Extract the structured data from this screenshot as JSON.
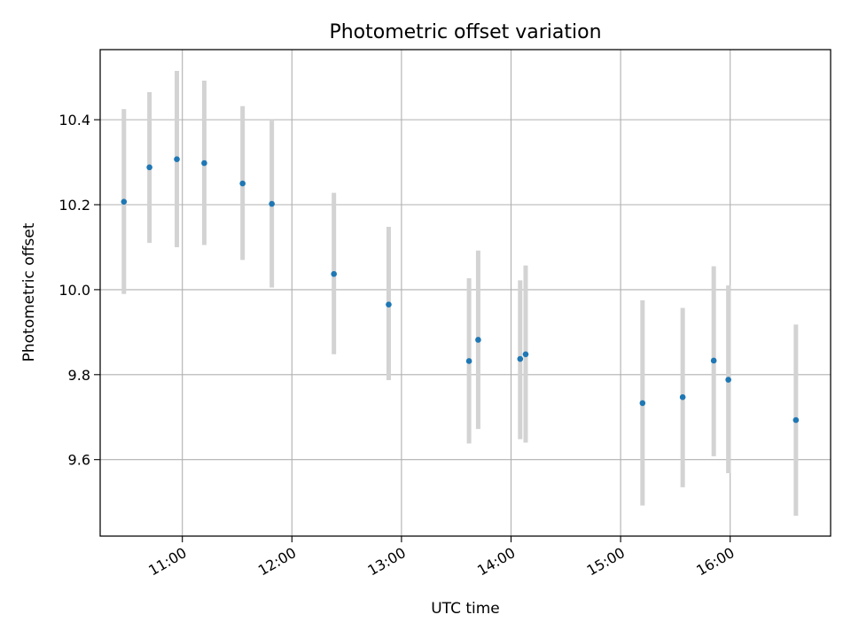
{
  "chart_data": {
    "type": "scatter",
    "title": "Photometric offset variation",
    "xlabel": "UTC time",
    "ylabel": "Photometric offset",
    "xlim": [
      "10:15",
      "16:55"
    ],
    "ylim": [
      9.42,
      10.565
    ],
    "x_ticks": [
      "11:00",
      "12:00",
      "13:00",
      "14:00",
      "15:00",
      "16:00"
    ],
    "y_ticks": [
      9.6,
      9.8,
      10.0,
      10.2,
      10.4
    ],
    "grid": true,
    "colors": {
      "point": "#1f77b4",
      "errorbar": "#d3d3d3",
      "grid": "#b0b0b0"
    },
    "points": [
      {
        "x": "10:28",
        "y": 10.207,
        "ylo": 9.99,
        "yhi": 10.425
      },
      {
        "x": "10:42",
        "y": 10.288,
        "ylo": 10.11,
        "yhi": 10.465
      },
      {
        "x": "10:57",
        "y": 10.307,
        "ylo": 10.1,
        "yhi": 10.515
      },
      {
        "x": "11:12",
        "y": 10.298,
        "ylo": 10.105,
        "yhi": 10.492
      },
      {
        "x": "11:33",
        "y": 10.25,
        "ylo": 10.07,
        "yhi": 10.432
      },
      {
        "x": "11:49",
        "y": 10.202,
        "ylo": 10.005,
        "yhi": 10.398
      },
      {
        "x": "12:23",
        "y": 10.037,
        "ylo": 9.848,
        "yhi": 10.228
      },
      {
        "x": "12:53",
        "y": 9.965,
        "ylo": 9.787,
        "yhi": 10.148
      },
      {
        "x": "13:37",
        "y": 9.832,
        "ylo": 9.638,
        "yhi": 10.027
      },
      {
        "x": "13:42",
        "y": 9.882,
        "ylo": 9.672,
        "yhi": 10.092
      },
      {
        "x": "14:05",
        "y": 9.837,
        "ylo": 9.648,
        "yhi": 10.022
      },
      {
        "x": "14:08",
        "y": 9.848,
        "ylo": 9.64,
        "yhi": 10.057
      },
      {
        "x": "15:12",
        "y": 9.733,
        "ylo": 9.492,
        "yhi": 9.975
      },
      {
        "x": "15:34",
        "y": 9.747,
        "ylo": 9.535,
        "yhi": 9.957
      },
      {
        "x": "15:51",
        "y": 9.833,
        "ylo": 9.608,
        "yhi": 10.055
      },
      {
        "x": "15:59",
        "y": 9.788,
        "ylo": 9.568,
        "yhi": 10.01
      },
      {
        "x": "16:36",
        "y": 9.693,
        "ylo": 9.468,
        "yhi": 9.918
      }
    ]
  }
}
